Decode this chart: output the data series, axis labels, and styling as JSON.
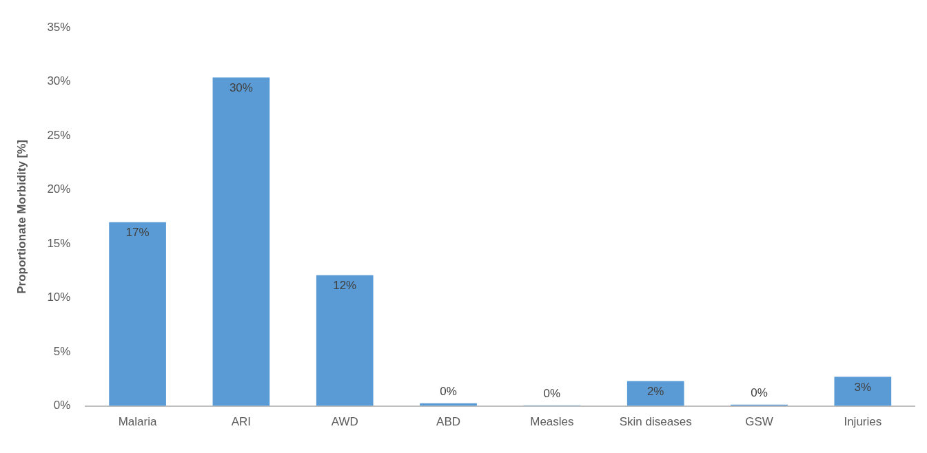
{
  "chart_data": {
    "type": "bar",
    "ylabel": "Proportionate Morbidity [%]",
    "categories": [
      "Malaria",
      "ARI",
      "AWD",
      "ABD",
      "Measles",
      "Skin diseases",
      "GSW",
      "Injuries"
    ],
    "values": [
      17.0,
      30.4,
      12.1,
      0.25,
      0.06,
      2.3,
      0.12,
      2.7
    ],
    "value_labels": [
      "17%",
      "30%",
      "12%",
      "0%",
      "0%",
      "2%",
      "0%",
      "3%"
    ],
    "color": "#5b9bd5",
    "ylim": [
      0,
      35
    ],
    "yticks": [
      {
        "value": 0,
        "label": "0%"
      },
      {
        "value": 5,
        "label": "5%"
      },
      {
        "value": 10,
        "label": "10%"
      },
      {
        "value": 15,
        "label": "15%"
      },
      {
        "value": 20,
        "label": "20%"
      },
      {
        "value": 25,
        "label": "25%"
      },
      {
        "value": 30,
        "label": "30%"
      },
      {
        "value": 35,
        "label": "35%"
      }
    ],
    "grid": false
  }
}
